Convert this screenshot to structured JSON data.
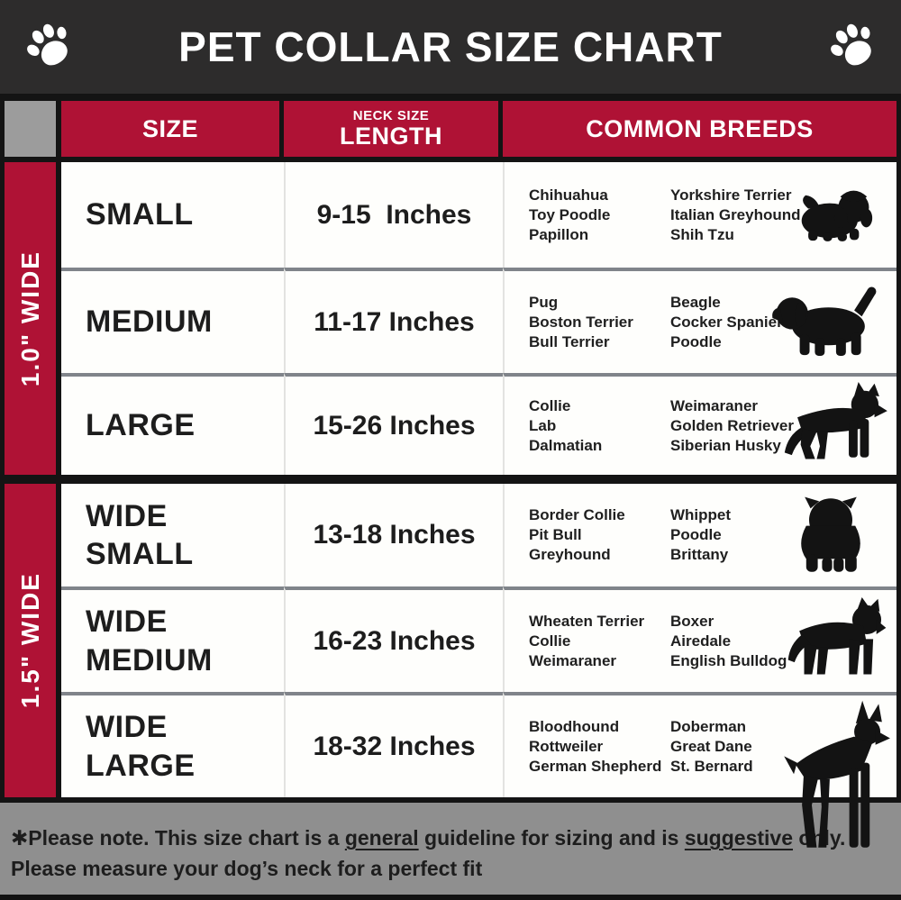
{
  "title": "PET COLLAR SIZE CHART",
  "colors": {
    "accent_red": "#AF1235",
    "title_charcoal": "#2D2C2C",
    "table_black": "#141414",
    "row_white": "#FEFEFC",
    "corner_gray": "#9C9C9C",
    "footer_gray": "#8F8F8F",
    "text_dark": "#1D1D1D",
    "silhouette_black": "#131313"
  },
  "header": {
    "size_label": "SIZE",
    "length_sub_label": "NECK SIZE",
    "length_label": "LENGTH",
    "breeds_label": "COMMON BREEDS"
  },
  "groups": [
    {
      "label": "1.0\" WIDE"
    },
    {
      "label": "1.5\" WIDE"
    }
  ],
  "rows": [
    {
      "size": "SMALL",
      "length": "9-15  Inches",
      "breeds_left": [
        "Chihuahua",
        "Toy Poodle",
        "Papillon"
      ],
      "breeds_right": [
        "Yorkshire Terrier",
        "Italian Greyhound",
        "Shih Tzu"
      ],
      "dog_icon": "shih-tzu-dog-icon"
    },
    {
      "size": "MEDIUM",
      "length": "11-17 Inches",
      "breeds_left": [
        "Pug",
        "Boston Terrier",
        "Bull Terrier"
      ],
      "breeds_right": [
        "Beagle",
        "Cocker Spaniel",
        "Poodle"
      ],
      "dog_icon": "beagle-dog-icon"
    },
    {
      "size": "LARGE",
      "length": "15-26 Inches",
      "breeds_left": [
        "Collie",
        "Lab",
        "Dalmatian"
      ],
      "breeds_right": [
        "Weimaraner",
        "Golden Retriever",
        "Siberian Husky"
      ],
      "dog_icon": "german-shepherd-dog-icon"
    },
    {
      "size": "WIDE SMALL",
      "length": "13-18 Inches",
      "breeds_left": [
        "Border Collie",
        "Pit Bull",
        "Greyhound"
      ],
      "breeds_right": [
        "Whippet",
        "Poodle",
        "Brittany"
      ],
      "dog_icon": "bulldog-dog-icon"
    },
    {
      "size": "WIDE MEDIUM",
      "length": "16-23 Inches",
      "breeds_left": [
        "Wheaten Terrier",
        "Collie",
        "Weimaraner"
      ],
      "breeds_right": [
        "Boxer",
        "Airedale",
        "English Bulldog"
      ],
      "dog_icon": "pit-bull-dog-icon"
    },
    {
      "size": "WIDE LARGE",
      "length": "18-32 Inches",
      "breeds_left": [
        "Bloodhound",
        "Rottweiler",
        "German Shepherd"
      ],
      "breeds_right": [
        "Doberman",
        "Great Dane",
        "St. Bernard"
      ],
      "dog_icon": "doberman-dog-icon"
    }
  ],
  "footer": {
    "note_pre": "✱Please note. This size chart is a ",
    "underline_1": "general",
    "note_mid": " guideline for sizing and is ",
    "underline_2": "suggestive",
    "note_post": " only.",
    "line_2": "Please measure your dog’s neck for a perfect fit"
  }
}
